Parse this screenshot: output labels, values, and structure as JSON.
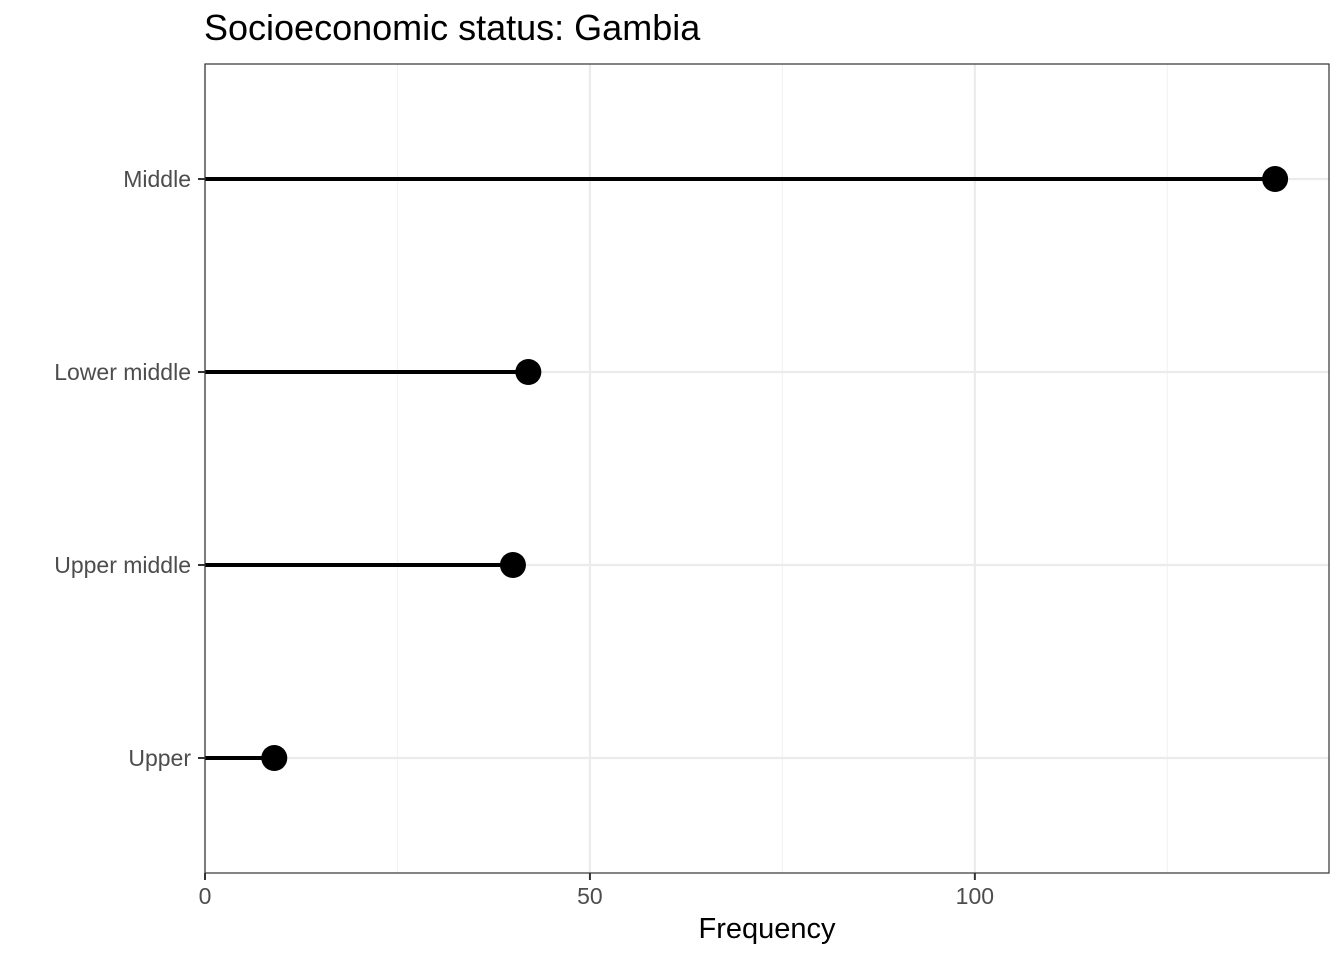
{
  "chart_data": {
    "type": "lollipop",
    "title": "Socioeconomic status: Gambia",
    "xlabel": "Frequency",
    "ylabel": "",
    "categories": [
      "Middle",
      "Lower middle",
      "Upper middle",
      "Upper"
    ],
    "values": [
      139,
      42,
      40,
      9
    ],
    "xlim": [
      0,
      146
    ],
    "x_ticks": [
      0,
      50,
      100
    ],
    "x_tick_labels": [
      "0",
      "50",
      "100"
    ],
    "grid": true,
    "orientation": "horizontal",
    "colors": {
      "mark": "#000000",
      "grid_major": "#ebebeb",
      "grid_minor": "#f3f3f3",
      "panel_border": "#333333",
      "tick_text": "#4d4d4d"
    }
  }
}
